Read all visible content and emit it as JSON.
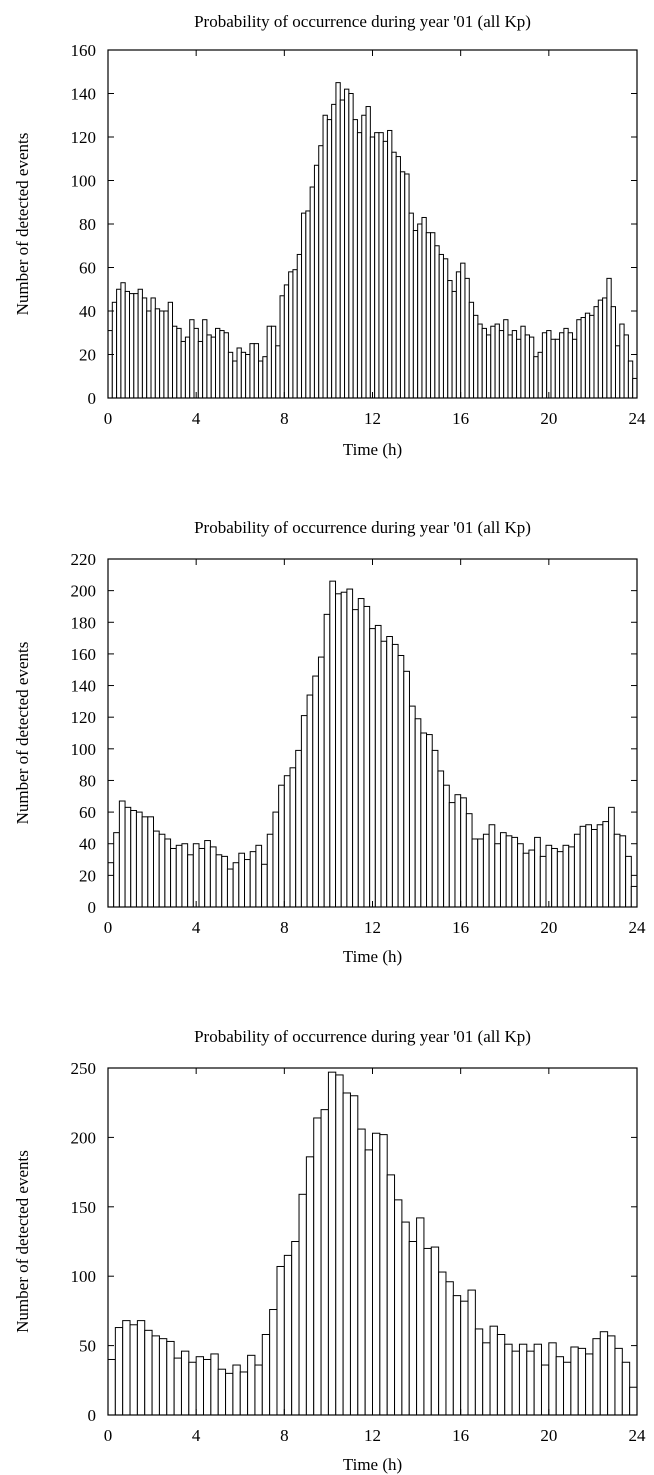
{
  "chart_data": [
    {
      "type": "bar",
      "title": "Probability of occurrence during year '01 (all Kp)",
      "xlabel": "Time (h)",
      "ylabel": "Number of detected events",
      "xlim": [
        0,
        24
      ],
      "ylim": [
        0,
        160
      ],
      "xticks": [
        0,
        4,
        8,
        12,
        16,
        20,
        24
      ],
      "yticks": [
        0,
        20,
        40,
        60,
        80,
        100,
        120,
        140,
        160
      ],
      "bin_width_h": 0.2,
      "grid": false,
      "values": [
        31,
        44,
        50,
        53,
        49,
        48,
        48,
        50,
        46,
        40,
        46,
        41,
        40,
        40,
        44,
        33,
        32,
        26,
        28,
        36,
        32,
        26,
        36,
        29,
        28,
        32,
        31,
        30,
        21,
        17,
        23,
        21,
        20,
        25,
        25,
        17,
        19,
        33,
        33,
        24,
        47,
        52,
        58,
        59,
        66,
        85,
        86,
        97,
        107,
        116,
        130,
        128,
        135,
        145,
        137,
        142,
        140,
        128,
        122,
        130,
        134,
        120,
        122,
        122,
        118,
        123,
        113,
        111,
        104,
        103,
        85,
        77,
        80,
        83,
        76,
        76,
        70,
        66,
        64,
        54,
        49,
        58,
        62,
        55,
        44,
        38,
        34,
        32,
        29,
        33,
        34,
        31,
        36,
        29,
        31,
        27,
        33,
        29,
        28,
        19,
        21,
        30,
        31,
        27,
        27,
        30,
        32,
        30,
        27,
        36,
        37,
        39,
        38,
        42,
        45,
        46,
        55,
        42,
        24,
        34,
        29,
        17,
        9
      ]
    },
    {
      "type": "bar",
      "title": "Probability of occurrence during year '01 (all Kp)",
      "xlabel": "Time (h)",
      "ylabel": "Number of detected events",
      "xlim": [
        0,
        24
      ],
      "ylim": [
        0,
        220
      ],
      "xticks": [
        0,
        4,
        8,
        12,
        16,
        20,
        24
      ],
      "yticks": [
        0,
        20,
        40,
        60,
        80,
        100,
        120,
        140,
        160,
        180,
        200,
        220
      ],
      "bin_width_h": 0.25,
      "grid": false,
      "values": [
        28,
        47,
        67,
        63,
        61,
        60,
        57,
        57,
        48,
        46,
        43,
        37,
        39,
        40,
        33,
        40,
        37,
        42,
        38,
        33,
        32,
        24,
        28,
        34,
        30,
        35,
        39,
        27,
        46,
        60,
        77,
        83,
        88,
        99,
        121,
        134,
        146,
        158,
        185,
        206,
        198,
        199,
        201,
        188,
        195,
        190,
        176,
        178,
        168,
        171,
        166,
        159,
        149,
        127,
        119,
        110,
        109,
        99,
        86,
        77,
        66,
        71,
        69,
        59,
        43,
        43,
        46,
        52,
        40,
        47,
        45,
        44,
        40,
        34,
        36,
        44,
        32,
        39,
        37,
        35,
        39,
        38,
        46,
        51,
        52,
        49,
        52,
        54,
        63,
        46,
        45,
        32,
        13
      ]
    },
    {
      "type": "bar",
      "title": "Probability of occurrence during year '01 (all Kp)",
      "xlabel": "Time (h)",
      "ylabel": "Number of detected events",
      "xlim": [
        0,
        24
      ],
      "ylim": [
        0,
        250
      ],
      "xticks": [
        0,
        4,
        8,
        12,
        16,
        20,
        24
      ],
      "yticks": [
        0,
        50,
        100,
        150,
        200,
        250
      ],
      "bin_width_h": 0.333,
      "grid": false,
      "values": [
        40,
        63,
        68,
        65,
        68,
        61,
        57,
        55,
        53,
        41,
        46,
        38,
        42,
        40,
        44,
        33,
        30,
        36,
        31,
        43,
        36,
        58,
        76,
        107,
        115,
        125,
        159,
        186,
        214,
        220,
        247,
        245,
        232,
        230,
        206,
        191,
        203,
        202,
        173,
        155,
        139,
        125,
        142,
        120,
        121,
        103,
        96,
        86,
        82,
        90,
        62,
        52,
        64,
        58,
        51,
        46,
        51,
        46,
        51,
        36,
        52,
        42,
        38,
        49,
        48,
        44,
        55,
        60,
        57,
        48,
        38,
        20
      ]
    }
  ]
}
